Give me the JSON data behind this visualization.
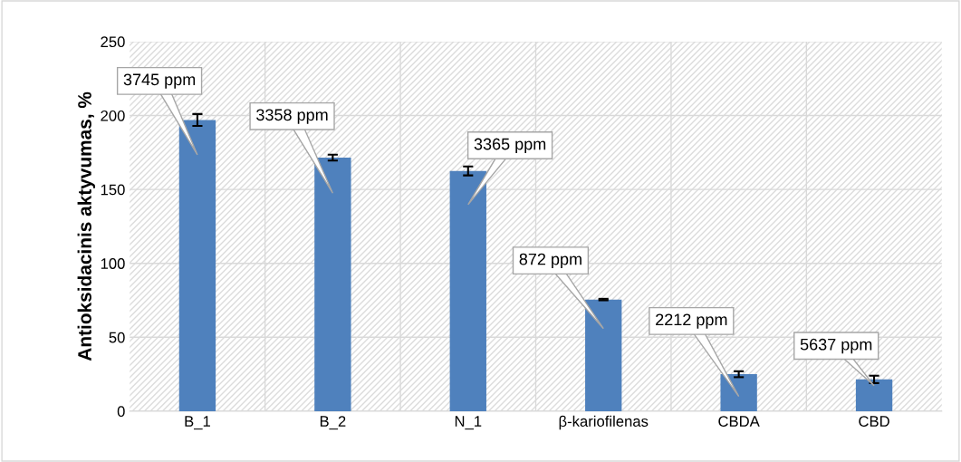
{
  "chart_data": {
    "type": "bar",
    "ylabel": "Antioksidacinis aktyvumas, %",
    "categories": [
      "B_1",
      "B_2",
      "N_1",
      "β-kariofilenas",
      "CBDA",
      "CBD"
    ],
    "values": [
      197,
      171.5,
      162.5,
      75.5,
      25,
      21.5
    ],
    "errors": [
      4,
      2,
      3,
      0.5,
      2,
      2.5
    ],
    "color": "#4f81bd",
    "ylim": [
      0,
      250
    ],
    "yticks": [
      0,
      50,
      100,
      150,
      200,
      250
    ],
    "grid": true,
    "annotations": [
      "3745 ppm",
      "3358 ppm",
      "3365 ppm",
      "872 ppm",
      "2212 ppm",
      "5637 ppm"
    ]
  }
}
